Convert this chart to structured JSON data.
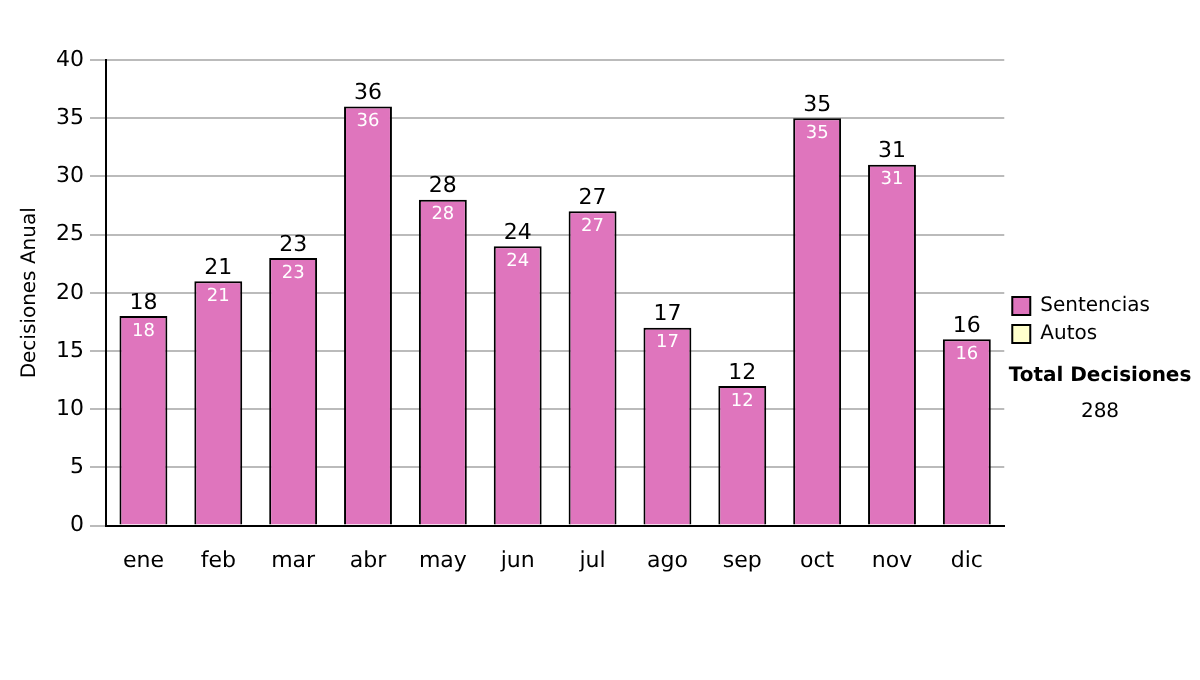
{
  "chart_data": {
    "type": "bar",
    "ylabel": "Decisiones Anual",
    "categories": [
      "ene",
      "feb",
      "mar",
      "abr",
      "may",
      "jun",
      "jul",
      "ago",
      "sep",
      "oct",
      "nov",
      "dic"
    ],
    "series": [
      {
        "name": "Sentencias",
        "color": "#df75bd",
        "values": [
          18,
          21,
          23,
          36,
          28,
          24,
          27,
          17,
          12,
          35,
          31,
          16
        ],
        "value_labels": [
          "18",
          "21",
          "23",
          "36",
          "28",
          "24",
          "27",
          "17",
          "12",
          "35",
          "31",
          "16"
        ]
      },
      {
        "name": "Autos",
        "color": "#ffffcc",
        "values": [
          0,
          0,
          0,
          0,
          0,
          0,
          0,
          0,
          0,
          0,
          0,
          0
        ],
        "value_labels": [
          null,
          null,
          null,
          null,
          null,
          null,
          null,
          null,
          null,
          null,
          null,
          null
        ]
      }
    ],
    "stacked": true,
    "totals": [
      "18",
      "21",
      "23",
      "36",
      "28",
      "24",
      "27",
      "17",
      "12",
      "35",
      "31",
      "16"
    ],
    "ylim": [
      0,
      40
    ],
    "yticks": [
      0,
      5,
      10,
      15,
      20,
      25,
      30,
      35,
      40
    ],
    "grid": "y",
    "legend": "right",
    "annotations": [
      "Total Decisiones",
      "288"
    ]
  }
}
